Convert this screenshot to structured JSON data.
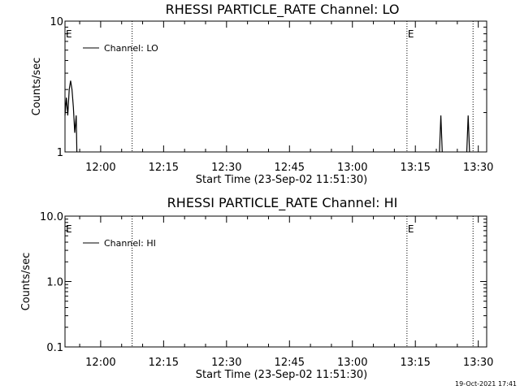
{
  "chart_data": [
    {
      "type": "line",
      "title": "RHESSI PARTICLE_RATE Channel: LO",
      "xlabel": "Start Time (23-Sep-02 11:51:30)",
      "ylabel": "Counts/sec",
      "y_scale": "log",
      "ylim": [
        1,
        10
      ],
      "y_ticks": [
        "1",
        "10"
      ],
      "x_ticks": [
        "12:00",
        "12:15",
        "12:30",
        "12:45",
        "13:00",
        "13:15",
        "13:30"
      ],
      "xlim": [
        "11:51:30",
        "13:32:00"
      ],
      "legend": "Channel: LO",
      "legend_position": "top-left",
      "grid": false,
      "event_lines": [
        {
          "time": "12:07:30",
          "label": ""
        },
        {
          "time": "13:13:00",
          "label": "E"
        },
        {
          "time": "13:28:45",
          "label": ""
        }
      ],
      "edge_label": "E",
      "series": [
        {
          "x": [
            "11:51:30",
            "11:51:50",
            "11:52:10",
            "11:52:30",
            "11:52:50",
            "11:53:10",
            "11:53:30",
            "11:53:50",
            "11:54:10",
            "11:54:20"
          ],
          "y": [
            1.9,
            2.6,
            1.9,
            3.0,
            3.5,
            3.0,
            2.2,
            1.4,
            1.9,
            1.0
          ]
        },
        {
          "x": [
            "13:20:45",
            "13:21:05",
            "13:21:25"
          ],
          "y": [
            1.0,
            1.9,
            1.0
          ]
        },
        {
          "x": [
            "13:27:15",
            "13:27:35",
            "13:27:55"
          ],
          "y": [
            1.0,
            1.9,
            1.0
          ]
        }
      ]
    },
    {
      "type": "line",
      "title": "RHESSI PARTICLE_RATE Channel: HI",
      "xlabel": "Start Time (23-Sep-02 11:51:30)",
      "ylabel": "Counts/sec",
      "y_scale": "log",
      "ylim": [
        0.1,
        10
      ],
      "y_ticks": [
        "0.1",
        "1.0",
        "10.0"
      ],
      "x_ticks": [
        "12:00",
        "12:15",
        "12:30",
        "12:45",
        "13:00",
        "13:15",
        "13:30"
      ],
      "xlim": [
        "11:51:30",
        "13:32:00"
      ],
      "legend": "Channel: HI",
      "legend_position": "top-left",
      "grid": false,
      "event_lines": [
        {
          "time": "12:07:30",
          "label": ""
        },
        {
          "time": "13:13:00",
          "label": "E"
        },
        {
          "time": "13:28:45",
          "label": ""
        }
      ],
      "edge_label": "E",
      "series": []
    }
  ],
  "timestamp": "19-Oct-2021 17:41"
}
